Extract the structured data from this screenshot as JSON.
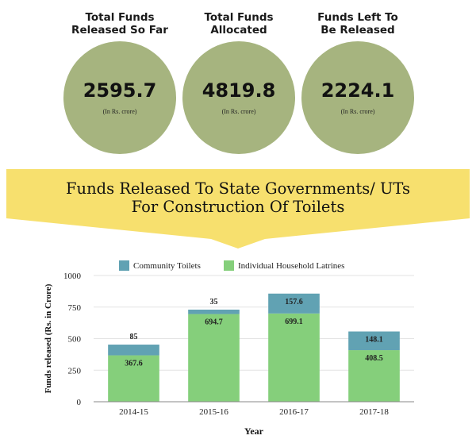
{
  "stats": [
    {
      "title_line1": "Total Funds",
      "title_line2": "Released So Far",
      "value": "2595.7",
      "unit": "(In Rs. crore)"
    },
    {
      "title_line1": "Total Funds",
      "title_line2": "Allocated",
      "value": "4819.8",
      "unit": "(In Rs. crore)"
    },
    {
      "title_line1": "Funds Left To",
      "title_line2": "Be Released",
      "value": "2224.1",
      "unit": "(In Rs. crore)"
    }
  ],
  "banner": {
    "line1": "Funds Released To State Governments/ UTs",
    "line2": "For Construction Of Toilets"
  },
  "colors": {
    "circle": "#a6b47f",
    "banner": "#f7e06e",
    "community": "#61a2b3",
    "individual": "#85cf7b"
  },
  "chart_data": {
    "type": "bar",
    "stacked": true,
    "categories": [
      "2014-15",
      "2015-16",
      "2016-17",
      "2017-18"
    ],
    "series": [
      {
        "name": "Individual Household Latrines",
        "values": [
          367.6,
          694.7,
          699.1,
          408.5
        ],
        "labels": [
          "367.6",
          "694.7",
          "699.1",
          "408.5"
        ]
      },
      {
        "name": "Community Toilets",
        "values": [
          85,
          35,
          157.6,
          148.1
        ],
        "labels": [
          "85",
          "35",
          "157.6",
          "148.1"
        ]
      }
    ],
    "xlabel": "Year",
    "ylabel": "Funds released (Rs. in Crore)",
    "ylim": [
      0,
      1000
    ],
    "yticks": [
      "0",
      "250",
      "500",
      "750",
      "1000"
    ],
    "grid": true,
    "legend_position": "top"
  }
}
